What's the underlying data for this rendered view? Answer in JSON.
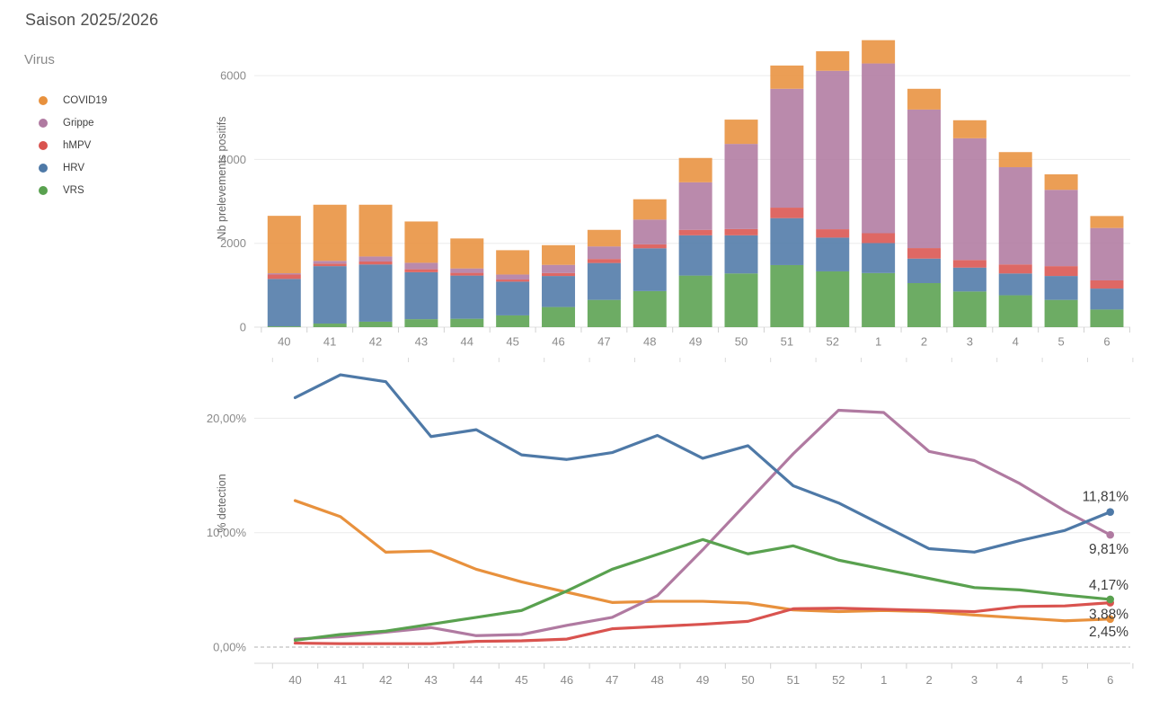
{
  "title": "Saison 2025/2026",
  "legend": {
    "title": "Virus",
    "items": [
      {
        "label": "COVID19",
        "color": "#e8913d"
      },
      {
        "label": "Grippe",
        "color": "#b07aa1"
      },
      {
        "label": "hMPV",
        "color": "#d9534f"
      },
      {
        "label": "HRV",
        "color": "#4e79a7"
      },
      {
        "label": "VRS",
        "color": "#59a14f"
      }
    ]
  },
  "chart_data": [
    {
      "type": "bar",
      "stacked": true,
      "ylabel": "Nb prelevements positifs",
      "xlabel": "",
      "ylim": [
        0,
        7000
      ],
      "grid": true,
      "legend_position": "left",
      "yticks": [
        0,
        2000,
        4000,
        6000
      ],
      "ytick_labels": [
        "0",
        "2000",
        "4000",
        "6000"
      ],
      "categories": [
        "40",
        "41",
        "42",
        "43",
        "44",
        "45",
        "46",
        "47",
        "48",
        "49",
        "50",
        "51",
        "52",
        "1",
        "2",
        "3",
        "4",
        "5",
        "6"
      ],
      "stack_order": "bottom to top",
      "series": [
        {
          "name": "VRS",
          "color": "#59a14f",
          "values": [
            20,
            85,
            130,
            190,
            200,
            280,
            480,
            650,
            860,
            1230,
            1280,
            1480,
            1330,
            1290,
            1050,
            850,
            760,
            650,
            420
          ]
        },
        {
          "name": "HRV",
          "color": "#4e79a7",
          "values": [
            1130,
            1370,
            1365,
            1120,
            1030,
            805,
            740,
            880,
            1020,
            960,
            910,
            1120,
            805,
            715,
            585,
            570,
            520,
            570,
            500
          ]
        },
        {
          "name": "hMPV",
          "color": "#d9534f",
          "values": [
            105,
            60,
            70,
            70,
            65,
            50,
            70,
            95,
            95,
            130,
            150,
            250,
            200,
            235,
            250,
            180,
            215,
            235,
            195
          ]
        },
        {
          "name": "Grippe",
          "color": "#b07aa1",
          "values": [
            30,
            65,
            120,
            155,
            105,
            120,
            195,
            300,
            590,
            1135,
            2030,
            2835,
            3780,
            4050,
            3305,
            2905,
            2320,
            1820,
            1250
          ]
        },
        {
          "name": "COVID19",
          "color": "#e8913d",
          "values": [
            1370,
            1340,
            1235,
            985,
            715,
            580,
            470,
            395,
            485,
            580,
            580,
            555,
            465,
            555,
            495,
            430,
            360,
            370,
            285
          ]
        }
      ]
    },
    {
      "type": "line",
      "ylabel": "% detection",
      "xlabel": "",
      "ylim": [
        0,
        25
      ],
      "grid": true,
      "zero_line": "dashed",
      "yticks": [
        0,
        10,
        20
      ],
      "ytick_labels": [
        "0,00%",
        "10,00%",
        "20,00%"
      ],
      "categories": [
        "40",
        "41",
        "42",
        "43",
        "44",
        "45",
        "46",
        "47",
        "48",
        "49",
        "50",
        "51",
        "52",
        "1",
        "2",
        "3",
        "4",
        "5",
        "6"
      ],
      "series": [
        {
          "name": "COVID19",
          "color": "#e8913d",
          "end_label": "2,45%",
          "values": [
            12.8,
            11.4,
            8.3,
            8.4,
            6.8,
            5.7,
            4.8,
            3.9,
            4.0,
            4.0,
            3.85,
            3.25,
            3.1,
            3.2,
            3.1,
            2.8,
            2.55,
            2.3,
            2.45
          ]
        },
        {
          "name": "Grippe",
          "color": "#b07aa1",
          "end_label": "9,81%",
          "values": [
            0.7,
            0.9,
            1.3,
            1.7,
            1.0,
            1.1,
            1.9,
            2.6,
            4.5,
            8.5,
            12.7,
            16.9,
            20.7,
            20.5,
            17.1,
            16.3,
            14.3,
            11.9,
            9.81
          ]
        },
        {
          "name": "hMPV",
          "color": "#d9534f",
          "end_label": "3,88%",
          "values": [
            0.35,
            0.3,
            0.3,
            0.3,
            0.5,
            0.55,
            0.7,
            1.6,
            1.8,
            2.0,
            2.25,
            3.35,
            3.4,
            3.3,
            3.2,
            3.1,
            3.55,
            3.6,
            3.88
          ]
        },
        {
          "name": "HRV",
          "color": "#4e79a7",
          "end_label": "11,81%",
          "values": [
            21.8,
            23.8,
            23.2,
            18.4,
            19.0,
            16.8,
            16.4,
            17.0,
            18.5,
            16.5,
            17.6,
            14.1,
            12.6,
            10.6,
            8.6,
            8.3,
            9.3,
            10.2,
            11.81
          ]
        },
        {
          "name": "VRS",
          "color": "#59a14f",
          "end_label": "4,17%",
          "values": [
            0.6,
            1.1,
            1.4,
            2.0,
            2.6,
            3.2,
            4.9,
            6.8,
            8.1,
            9.4,
            8.15,
            8.85,
            7.6,
            6.8,
            6.0,
            5.2,
            5.0,
            4.55,
            4.17
          ]
        }
      ]
    }
  ]
}
